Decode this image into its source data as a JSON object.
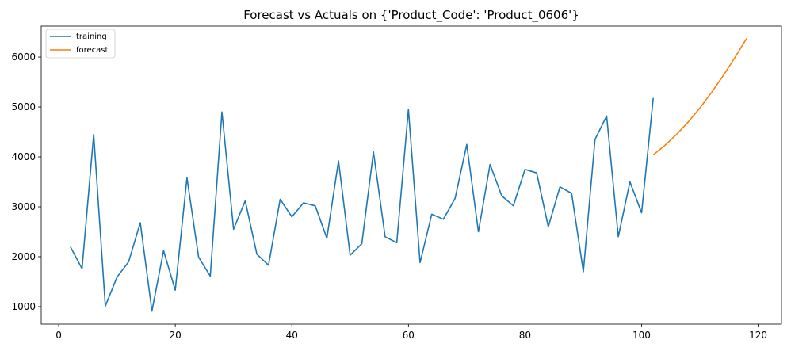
{
  "chart_data": {
    "type": "line",
    "title": "Forecast vs Actuals on {'Product_Code': 'Product_0606'}",
    "xlabel": "",
    "ylabel": "",
    "xlim": [
      -3,
      124
    ],
    "ylim": [
      650,
      6620
    ],
    "xticks": [
      0,
      20,
      40,
      60,
      80,
      100,
      120
    ],
    "yticks": [
      1000,
      2000,
      3000,
      4000,
      5000,
      6000
    ],
    "grid": false,
    "legend_position": "top-left",
    "series": [
      {
        "name": "training",
        "color": "#1f77b4",
        "x": [
          2,
          4,
          6,
          8,
          10,
          12,
          14,
          16,
          18,
          20,
          22,
          24,
          26,
          28,
          30,
          32,
          34,
          36,
          38,
          40,
          42,
          44,
          46,
          48,
          50,
          52,
          54,
          56,
          58,
          60,
          62,
          64,
          66,
          68,
          70,
          72,
          74,
          76,
          78,
          80,
          82,
          84,
          86,
          88,
          90,
          92,
          94,
          96,
          98,
          100,
          102
        ],
        "y": [
          2200,
          1760,
          4450,
          1010,
          1590,
          1900,
          2680,
          910,
          2120,
          1330,
          3580,
          1990,
          1610,
          4900,
          2550,
          3120,
          2050,
          1830,
          3150,
          2800,
          3080,
          3020,
          2370,
          3920,
          2030,
          2260,
          4100,
          2400,
          2280,
          4950,
          1880,
          2850,
          2750,
          3170,
          4250,
          2500,
          3850,
          3220,
          3020,
          3750,
          3680,
          2600,
          3400,
          3270,
          1700,
          4350,
          4820,
          2400,
          3500,
          2880,
          5180
        ]
      },
      {
        "name": "forecast",
        "color": "#ff7f0e",
        "x": [
          102,
          104,
          106,
          108,
          110,
          112,
          114,
          116,
          118
        ],
        "y": [
          4040,
          4230,
          4450,
          4700,
          4980,
          5290,
          5630,
          5990,
          6370
        ]
      }
    ]
  }
}
